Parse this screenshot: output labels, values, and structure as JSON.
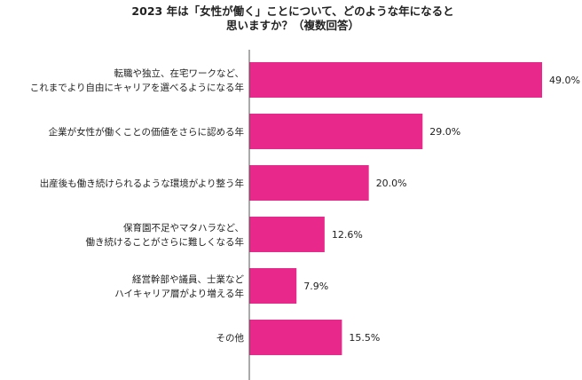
{
  "chart_data": {
    "type": "bar",
    "orientation": "horizontal",
    "title_lines": [
      "2023 年は「女性が働く」ことについて、どのような年になると",
      "思いますか？（複数回答）"
    ],
    "categories": [
      [
        "転職や独立、在宅ワークなど、",
        "これまでより自由にキャリアを選べるようになる年"
      ],
      [
        "企業が女性が働くことの価値をさらに認める年"
      ],
      [
        "出産後も働き続けられるような環境がより整う年"
      ],
      [
        "保育園不足やマタハラなど、",
        "働き続けることがさらに難しくなる年"
      ],
      [
        "経営幹部や議員、士業など",
        "ハイキャリア層がより増える年"
      ],
      [
        "その他"
      ]
    ],
    "values": [
      49.0,
      29.0,
      20.0,
      12.6,
      7.9,
      15.5
    ],
    "value_labels": [
      "49.0%",
      "29.0%",
      "20.0%",
      "12.6%",
      "7.9%",
      "15.5%"
    ],
    "bar_color": "#e8288a",
    "axis_color": "#555555",
    "xlim": [
      0,
      50
    ],
    "grid": false,
    "legend": "none"
  }
}
